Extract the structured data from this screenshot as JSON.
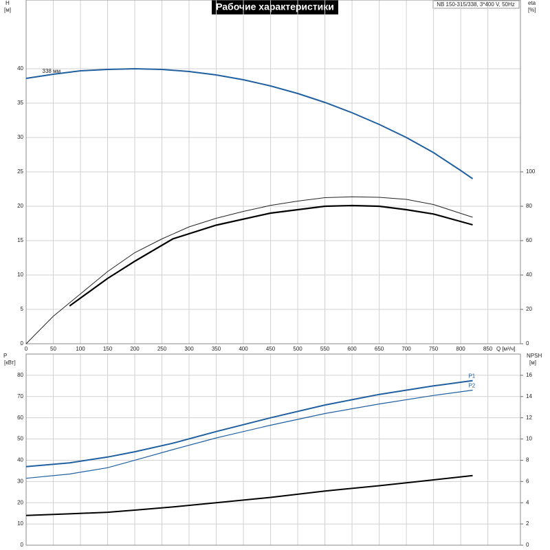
{
  "chart_data": [
    {
      "type": "line",
      "title": "Рабочие характеристики",
      "subtitle": "NB 150-315/338, 3*400 V, 50Hz",
      "ylabel": "H",
      "ylabel_unit": "[м]",
      "y2label": "eta",
      "y2label_unit": "[%]",
      "xlabel": "Q [м³/ч]",
      "xlim": [
        0,
        910
      ],
      "xticks": [
        0,
        50,
        100,
        150,
        200,
        250,
        300,
        350,
        400,
        450,
        500,
        550,
        600,
        650,
        700,
        750,
        800,
        850
      ],
      "ylim": [
        0,
        50
      ],
      "yticks": [
        0,
        5,
        10,
        15,
        20,
        25,
        30,
        35,
        40
      ],
      "y2lim": [
        0,
        200
      ],
      "y2ticks": [
        0,
        20,
        40,
        60,
        80,
        100
      ],
      "grid": true,
      "series": [
        {
          "label": "338 мм",
          "color": "#1f5fa0",
          "width": 2,
          "x": [
            0,
            50,
            100,
            150,
            200,
            250,
            300,
            350,
            400,
            450,
            500,
            550,
            600,
            650,
            700,
            750,
            800,
            822
          ],
          "values": [
            38.6,
            39.2,
            39.7,
            39.9,
            40.0,
            39.9,
            39.6,
            39.1,
            38.4,
            37.5,
            36.4,
            35.1,
            33.6,
            31.9,
            30.0,
            27.8,
            25.2,
            24.0
          ]
        },
        {
          "color": "#222222",
          "width": 1,
          "axis": "y2",
          "x": [
            0,
            50,
            100,
            150,
            200,
            250,
            300,
            350,
            400,
            450,
            500,
            550,
            600,
            650,
            700,
            750,
            822
          ],
          "values": [
            0,
            16,
            29,
            42,
            53,
            61,
            68,
            73,
            77,
            80.5,
            83,
            85,
            85.5,
            85.2,
            84,
            81,
            73.6
          ]
        },
        {
          "color": "#000000",
          "width": 2.2,
          "axis": "y2",
          "x": [
            80,
            150,
            200,
            270,
            350,
            450,
            550,
            600,
            650,
            700,
            750,
            822
          ],
          "values": [
            22,
            38,
            48,
            61,
            69,
            76,
            80,
            80.4,
            80,
            78,
            75.5,
            69.2
          ]
        }
      ]
    },
    {
      "type": "line",
      "ylabel": "P",
      "ylabel_unit": "[кВт]",
      "y2label": "NPSH",
      "y2label_unit": "[м]",
      "xlim": [
        0,
        910
      ],
      "ylim": [
        0,
        90
      ],
      "yticks": [
        0,
        10,
        20,
        30,
        40,
        50,
        60,
        70,
        80
      ],
      "y2lim": [
        0,
        18
      ],
      "y2ticks": [
        0,
        2,
        4,
        6,
        8,
        10,
        12,
        14,
        16
      ],
      "grid": true,
      "series": [
        {
          "name": "P1",
          "color": "#1f5fa0",
          "width": 2,
          "x": [
            0,
            80,
            150,
            200,
            270,
            350,
            450,
            550,
            650,
            750,
            822
          ],
          "values": [
            37,
            38.8,
            41.5,
            44,
            48,
            53.5,
            60,
            66,
            71,
            75,
            77.5
          ]
        },
        {
          "name": "P2",
          "color": "#1f5fa0",
          "width": 1.2,
          "x": [
            0,
            80,
            150,
            200,
            270,
            350,
            450,
            550,
            650,
            750,
            822
          ],
          "values": [
            31.5,
            33.5,
            36.5,
            40,
            45,
            50.5,
            56.5,
            62,
            66.5,
            70.5,
            73
          ]
        },
        {
          "color": "#000000",
          "width": 2,
          "axis": "y2",
          "x": [
            0,
            80,
            150,
            200,
            270,
            350,
            450,
            550,
            650,
            750,
            822
          ],
          "values": [
            2.8,
            2.95,
            3.1,
            3.3,
            3.6,
            4.0,
            4.5,
            5.1,
            5.6,
            6.15,
            6.55
          ]
        }
      ]
    }
  ]
}
